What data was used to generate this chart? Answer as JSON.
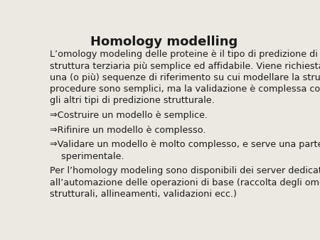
{
  "title": "Homology modelling",
  "background_color": "#ece9e2",
  "text_color": "#1a1a1a",
  "title_fontsize": 13,
  "body_fontsize": 9.2,
  "paragraph1_lines": [
    "L’omology modeling delle proteine è il tipo di predizione di",
    "struttura terziaria più semplice ed affidabile. Viene richiesta soltanto",
    "una (o più) sequenze di riferimento su cui modellare la struttura. Le",
    "procedure sono semplici, ma la validazione è complessa come tutti",
    "gli altri tipi di predizione strutturale."
  ],
  "bullet1": "⇒Costruire un modello è semplice.",
  "bullet2": "⇒Rifinire un modello è complesso.",
  "bullet3_line1": "⇒Validare un modello è molto complesso, e serve una parte",
  "bullet3_line2": "    sperimentale.",
  "paragraph2_lines": [
    "Per l’homology modeling sono disponibili dei server dedicati",
    "all’automazione delle operazioni di base (raccolta degli omologhi",
    "strutturali, allineamenti, validazioni ecc.)"
  ]
}
